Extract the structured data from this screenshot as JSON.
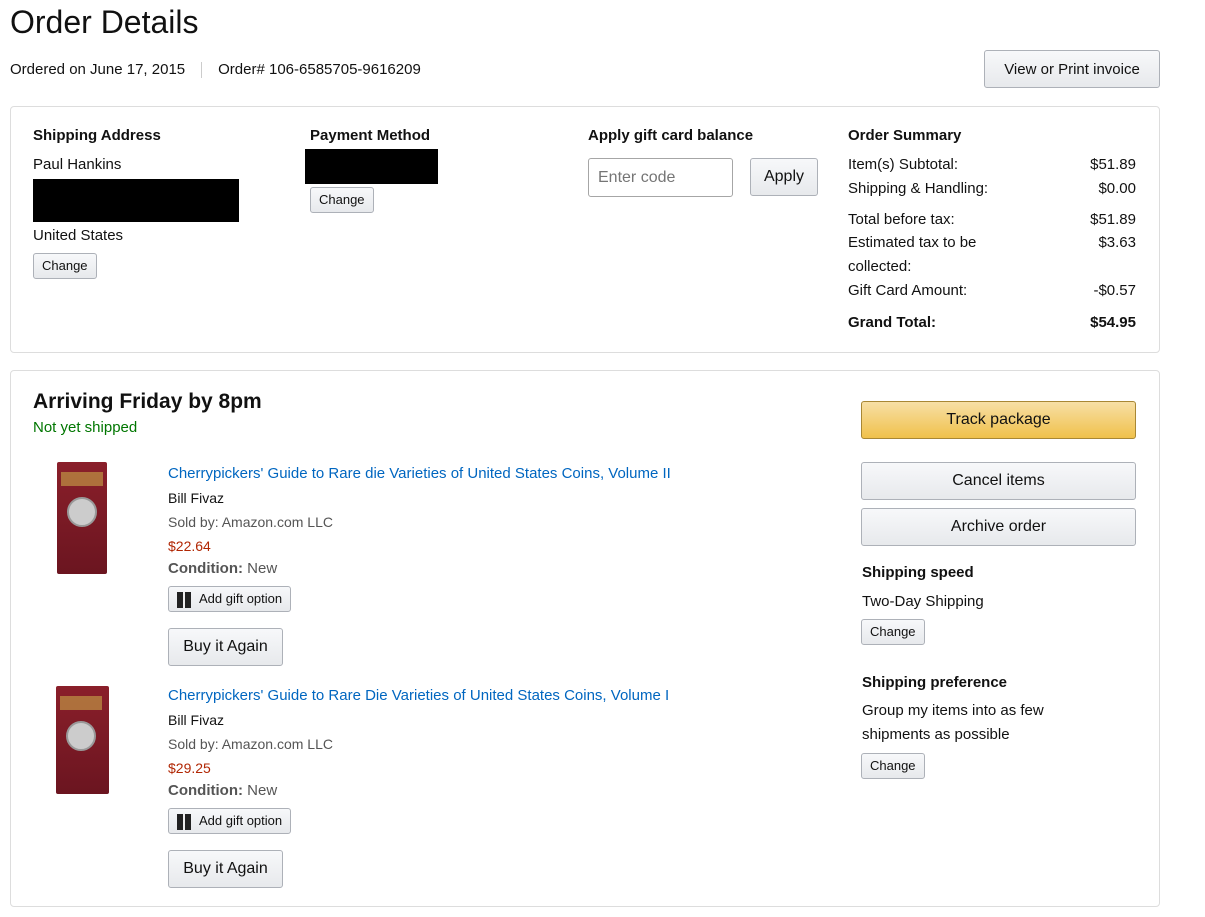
{
  "page": {
    "title": "Order Details",
    "ordered_on": "Ordered on June 17, 2015",
    "order_number": "Order# 106-6585705-9616209",
    "invoice_button": "View or Print invoice"
  },
  "shipping_address": {
    "heading": "Shipping Address",
    "name": "Paul Hankins",
    "country": "United States",
    "change": "Change"
  },
  "payment": {
    "heading": "Payment Method",
    "change": "Change"
  },
  "gift_card": {
    "heading": "Apply gift card balance",
    "placeholder": "Enter code",
    "apply": "Apply"
  },
  "summary": {
    "heading": "Order Summary",
    "rows": [
      {
        "label": "Item(s) Subtotal:",
        "value": "$51.89"
      },
      {
        "label": "Shipping & Handling:",
        "value": "$0.00"
      },
      {
        "label": "Total before tax:",
        "value": "$51.89"
      },
      {
        "label": "Estimated tax to be collected:",
        "value": "$3.63"
      },
      {
        "label": "Gift Card Amount:",
        "value": "-$0.57"
      }
    ],
    "grand_label": "Grand Total:",
    "grand_value": "$54.95"
  },
  "shipment": {
    "arrival": "Arriving Friday by 8pm",
    "status": "Not yet shipped",
    "status_color": "#007600",
    "items": [
      {
        "title": "Cherrypickers' Guide to Rare die Varieties of United States Coins, Volume II",
        "author": "Bill Fivaz",
        "sold_by": "Sold by: Amazon.com LLC",
        "price": "$22.64",
        "condition_label": "Condition:",
        "condition": "New",
        "gift": "Add gift option",
        "buy_again": "Buy it Again"
      },
      {
        "title": "Cherrypickers' Guide to Rare Die Varieties of United States Coins, Volume I",
        "author": "Bill Fivaz",
        "sold_by": "Sold by: Amazon.com LLC",
        "price": "$29.25",
        "condition_label": "Condition:",
        "condition": "New",
        "gift": "Add gift option",
        "buy_again": "Buy it Again"
      }
    ],
    "track": "Track package",
    "cancel": "Cancel items",
    "archive": "Archive order",
    "speed_heading": "Shipping speed",
    "speed": "Two-Day Shipping",
    "speed_change": "Change",
    "pref_heading": "Shipping preference",
    "pref": "Group my items into as few shipments as possible",
    "pref_change": "Change"
  }
}
